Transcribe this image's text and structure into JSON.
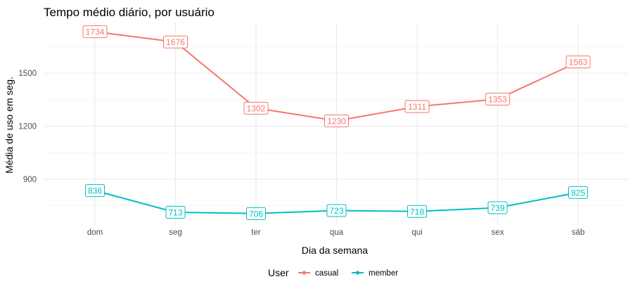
{
  "chart_data": {
    "type": "line",
    "title": "Tempo médio diário, por usuário",
    "xlabel": "Dia da semana",
    "ylabel": "Média de uso em seg.",
    "categories": [
      "dom",
      "seg",
      "ter",
      "qua",
      "qui",
      "sex",
      "sáb"
    ],
    "series": [
      {
        "name": "casual",
        "color": "#F8766D",
        "values": [
          1734,
          1676,
          1302,
          1230,
          1311,
          1353,
          1563
        ]
      },
      {
        "name": "member",
        "color": "#00BFC4",
        "values": [
          836,
          713,
          706,
          723,
          718,
          739,
          825
        ]
      }
    ],
    "ylim": [
      635,
      1785
    ],
    "yticks": [
      900,
      1200,
      1500
    ],
    "grid": true,
    "legend": {
      "title": "User",
      "position": "bottom"
    }
  }
}
